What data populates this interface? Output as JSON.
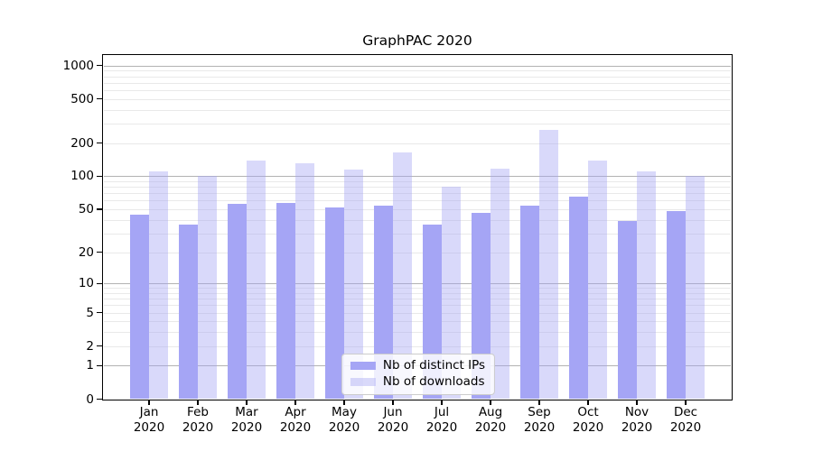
{
  "chart_data": {
    "type": "bar",
    "title": "GraphPAC 2020",
    "categories": [
      "Jan",
      "Feb",
      "Mar",
      "Apr",
      "May",
      "Jun",
      "Jul",
      "Aug",
      "Sep",
      "Oct",
      "Nov",
      "Dec"
    ],
    "category_year": "2020",
    "series": [
      {
        "name": "Nb of distinct IPs",
        "color": "#a5a5f5",
        "values": [
          45,
          36,
          56,
          57,
          52,
          54,
          36,
          46,
          54,
          65,
          39,
          48
        ]
      },
      {
        "name": "Nb of downloads",
        "color": "rgba(164,164,244,0.42)",
        "values": [
          110,
          100,
          140,
          131,
          114,
          164,
          80,
          117,
          264,
          140,
          111,
          100
        ]
      }
    ],
    "y_axis": {
      "scale": "log1p",
      "ticks": [
        0,
        1,
        2,
        5,
        10,
        20,
        50,
        100,
        200,
        500,
        1000
      ],
      "major_gridlines": [
        1,
        10,
        100,
        1000
      ],
      "minor_gridlines": [
        2,
        3,
        4,
        5,
        6,
        7,
        8,
        9,
        20,
        30,
        40,
        50,
        60,
        70,
        80,
        90,
        200,
        300,
        400,
        500,
        600,
        700,
        800,
        900
      ],
      "ylim": [
        0,
        1250
      ]
    },
    "xlabel": "",
    "ylabel": "",
    "grid": {
      "major": true,
      "minor": true
    },
    "legend": {
      "position": "lower center"
    }
  },
  "colors": {
    "grid_major": "#b2b2b2",
    "grid_minor": "#e9e9e9",
    "axis": "#000000",
    "legend_border": "#cccccc",
    "background": "#ffffff"
  }
}
